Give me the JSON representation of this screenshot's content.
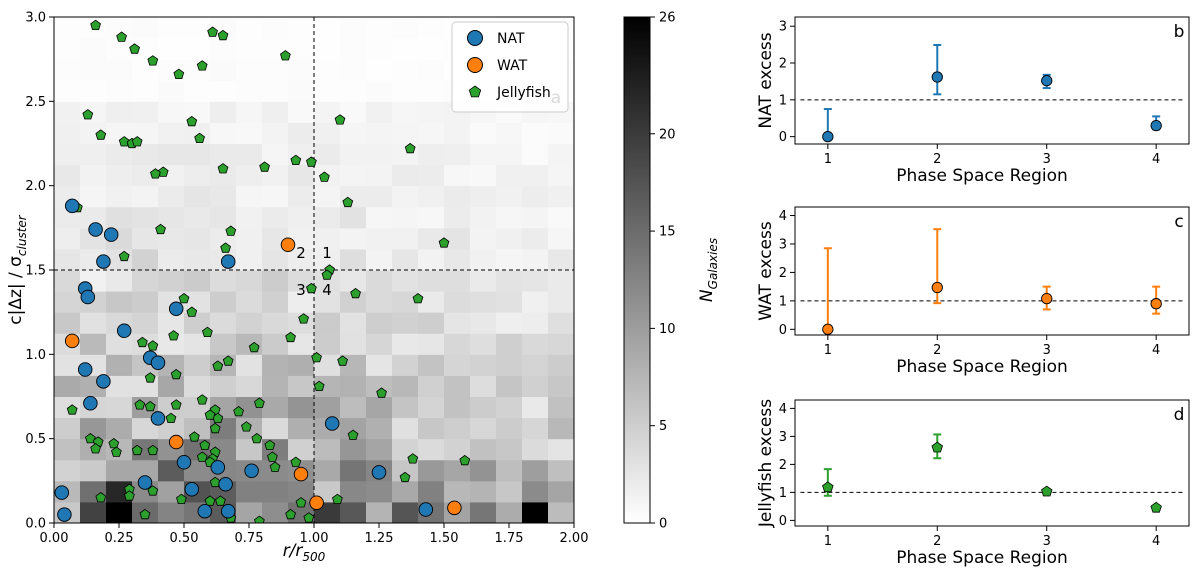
{
  "colors": {
    "nat": "#1f77b4",
    "wat": "#ff7f0e",
    "jelly": "#2ca02c",
    "axis": "#000000"
  },
  "chart_data": [
    {
      "id": "a",
      "type": "scatter",
      "panel_label": "a",
      "xlabel_main": "r/r",
      "xlabel_sub": "500",
      "ylabel": "c|Δz| / σ",
      "ylabel_sub": "cluster",
      "xlim": [
        0,
        2
      ],
      "ylim": [
        0,
        3
      ],
      "xticks": [
        0,
        0.25,
        0.5,
        0.75,
        1.0,
        1.25,
        1.5,
        1.75,
        2.0
      ],
      "xtick_labels": [
        "0.00",
        "0.25",
        "0.50",
        "0.75",
        "1.00",
        "1.25",
        "1.50",
        "1.75",
        "2.00"
      ],
      "yticks": [
        0,
        0.5,
        1.0,
        1.5,
        2.0,
        2.5,
        3.0
      ],
      "ytick_labels": [
        "0.0",
        "0.5",
        "1.0",
        "1.5",
        "2.0",
        "2.5",
        "3.0"
      ],
      "vline": 1.0,
      "hline": 1.5,
      "region_labels": [
        {
          "text": "1",
          "x": 1.05,
          "y": 1.6
        },
        {
          "text": "2",
          "x": 0.95,
          "y": 1.6
        },
        {
          "text": "3",
          "x": 0.95,
          "y": 1.38
        },
        {
          "text": "4",
          "x": 1.05,
          "y": 1.38
        }
      ],
      "heatmap": {
        "description": "2D histogram of cluster galaxies, bins 0.1 x 0.125",
        "vmin": 0,
        "vmax": 26,
        "x_bins": 20,
        "y_bins": 24
      },
      "colorbar": {
        "label": "N",
        "label_sub": "Galaxies",
        "ticks": [
          0,
          5,
          10,
          15,
          20,
          26
        ],
        "tick_labels": [
          "0",
          "5",
          "10",
          "15",
          "20",
          "26"
        ]
      },
      "legend": {
        "placement": "top-right",
        "entries": [
          {
            "label": "NAT",
            "marker": "circle",
            "color": "#1f77b4"
          },
          {
            "label": "WAT",
            "marker": "circle",
            "color": "#ff7f0e"
          },
          {
            "label": "Jellyfish",
            "marker": "pentagon",
            "color": "#2ca02c"
          }
        ]
      },
      "series": [
        {
          "name": "NAT",
          "points": [
            [
              0.07,
              1.88
            ],
            [
              0.16,
              1.74
            ],
            [
              0.22,
              1.71
            ],
            [
              0.19,
              1.55
            ],
            [
              0.67,
              1.55
            ],
            [
              0.12,
              1.39
            ],
            [
              0.13,
              1.34
            ],
            [
              0.47,
              1.27
            ],
            [
              0.27,
              1.14
            ],
            [
              0.12,
              0.91
            ],
            [
              0.37,
              0.98
            ],
            [
              0.4,
              0.95
            ],
            [
              0.19,
              0.84
            ],
            [
              0.14,
              0.71
            ],
            [
              0.4,
              0.62
            ],
            [
              1.07,
              0.59
            ],
            [
              0.5,
              0.36
            ],
            [
              0.63,
              0.33
            ],
            [
              0.76,
              0.31
            ],
            [
              1.25,
              0.3
            ],
            [
              0.35,
              0.24
            ],
            [
              0.53,
              0.2
            ],
            [
              0.66,
              0.23
            ],
            [
              0.03,
              0.18
            ],
            [
              0.04,
              0.05
            ],
            [
              0.58,
              0.07
            ],
            [
              0.67,
              0.07
            ],
            [
              1.43,
              0.08
            ]
          ]
        },
        {
          "name": "WAT",
          "points": [
            [
              0.9,
              1.65
            ],
            [
              0.07,
              1.08
            ],
            [
              0.47,
              0.48
            ],
            [
              0.95,
              0.29
            ],
            [
              1.01,
              0.12
            ],
            [
              1.54,
              0.09
            ]
          ]
        },
        {
          "name": "Jellyfish",
          "points": [
            [
              0.16,
              2.95
            ],
            [
              0.61,
              2.91
            ],
            [
              0.65,
              2.89
            ],
            [
              0.26,
              2.88
            ],
            [
              0.31,
              2.81
            ],
            [
              0.38,
              2.74
            ],
            [
              0.89,
              2.77
            ],
            [
              0.57,
              2.71
            ],
            [
              0.48,
              2.66
            ],
            [
              0.13,
              2.42
            ],
            [
              0.53,
              2.38
            ],
            [
              1.1,
              2.39
            ],
            [
              0.18,
              2.3
            ],
            [
              0.56,
              2.28
            ],
            [
              0.27,
              2.26
            ],
            [
              0.3,
              2.25
            ],
            [
              0.32,
              2.26
            ],
            [
              1.37,
              2.22
            ],
            [
              0.93,
              2.15
            ],
            [
              0.99,
              2.14
            ],
            [
              0.42,
              2.08
            ],
            [
              0.39,
              2.07
            ],
            [
              0.65,
              2.1
            ],
            [
              0.81,
              2.11
            ],
            [
              1.04,
              2.05
            ],
            [
              0.09,
              1.87
            ],
            [
              1.13,
              1.9
            ],
            [
              0.41,
              1.74
            ],
            [
              0.68,
              1.73
            ],
            [
              0.27,
              1.58
            ],
            [
              0.66,
              1.63
            ],
            [
              1.5,
              1.66
            ],
            [
              1.06,
              1.5
            ],
            [
              1.05,
              1.47
            ],
            [
              0.99,
              1.39
            ],
            [
              1.16,
              1.36
            ],
            [
              1.4,
              1.33
            ],
            [
              0.5,
              1.33
            ],
            [
              0.53,
              1.25
            ],
            [
              0.96,
              1.21
            ],
            [
              0.59,
              1.13
            ],
            [
              0.34,
              1.07
            ],
            [
              0.46,
              1.11
            ],
            [
              0.38,
              1.05
            ],
            [
              1.11,
              0.96
            ],
            [
              0.77,
              1.04
            ],
            [
              0.67,
              0.96
            ],
            [
              0.91,
              1.1
            ],
            [
              1.01,
              0.98
            ],
            [
              0.63,
              0.93
            ],
            [
              1.02,
              0.81
            ],
            [
              0.37,
              0.86
            ],
            [
              0.47,
              0.88
            ],
            [
              0.07,
              0.67
            ],
            [
              0.33,
              0.7
            ],
            [
              0.37,
              0.69
            ],
            [
              0.47,
              0.7
            ],
            [
              0.57,
              0.73
            ],
            [
              0.79,
              0.71
            ],
            [
              1.26,
              0.77
            ],
            [
              0.62,
              0.67
            ],
            [
              0.63,
              0.62
            ],
            [
              0.6,
              0.64
            ],
            [
              0.45,
              0.62
            ],
            [
              0.71,
              0.66
            ],
            [
              0.14,
              0.5
            ],
            [
              0.17,
              0.48
            ],
            [
              0.23,
              0.47
            ],
            [
              0.32,
              0.43
            ],
            [
              0.62,
              0.56
            ],
            [
              0.74,
              0.57
            ],
            [
              0.78,
              0.5
            ],
            [
              1.15,
              0.52
            ],
            [
              0.54,
              0.51
            ],
            [
              0.58,
              0.46
            ],
            [
              0.62,
              0.42
            ],
            [
              0.83,
              0.46
            ],
            [
              0.84,
              0.39
            ],
            [
              0.16,
              0.44
            ],
            [
              0.24,
              0.42
            ],
            [
              0.38,
              0.43
            ],
            [
              0.57,
              0.39
            ],
            [
              0.61,
              0.38
            ],
            [
              0.6,
              0.36
            ],
            [
              1.58,
              0.37
            ],
            [
              1.38,
              0.38
            ],
            [
              0.85,
              0.33
            ],
            [
              0.93,
              0.36
            ],
            [
              0.18,
              0.15
            ],
            [
              0.29,
              0.2
            ],
            [
              0.29,
              0.16
            ],
            [
              0.38,
              0.19
            ],
            [
              0.49,
              0.14
            ],
            [
              0.64,
              0.13
            ],
            [
              0.62,
              0.24
            ],
            [
              1.35,
              0.27
            ],
            [
              0.6,
              0.13
            ],
            [
              1.09,
              0.14
            ],
            [
              0.95,
              0.12
            ],
            [
              0.35,
              0.05
            ],
            [
              0.68,
              0.03
            ],
            [
              0.91,
              0.05
            ],
            [
              0.79,
              0.01
            ],
            [
              0.98,
              0.03
            ]
          ]
        }
      ]
    },
    {
      "id": "b",
      "type": "errorbar",
      "panel_label": "b",
      "ylabel": "NAT excess",
      "xlabel": "Phase Space Region",
      "xlim": [
        0.7,
        4.3
      ],
      "ylim": [
        -0.2,
        3.25
      ],
      "xticks": [
        1,
        2,
        3,
        4
      ],
      "yticks": [
        0,
        1,
        2,
        3
      ],
      "reference_line": 1,
      "marker": "circle",
      "color": "#1f77b4",
      "x": [
        1,
        2,
        3,
        4
      ],
      "y": [
        0.0,
        1.62,
        1.52,
        0.3
      ],
      "err_low": [
        0.0,
        0.47,
        0.2,
        0.1
      ],
      "err_high": [
        0.75,
        0.87,
        0.16,
        0.25
      ]
    },
    {
      "id": "c",
      "type": "errorbar",
      "panel_label": "c",
      "ylabel": "WAT excess",
      "xlabel": "Phase Space Region",
      "xlim": [
        0.7,
        4.3
      ],
      "ylim": [
        -0.2,
        4.3
      ],
      "xticks": [
        1,
        2,
        3,
        4
      ],
      "yticks": [
        0,
        1,
        2,
        3,
        4
      ],
      "reference_line": 1,
      "marker": "circle",
      "color": "#ff7f0e",
      "x": [
        1,
        2,
        3,
        4
      ],
      "y": [
        0.0,
        1.47,
        1.08,
        0.9
      ],
      "err_low": [
        0.0,
        0.55,
        0.38,
        0.35
      ],
      "err_high": [
        2.85,
        2.05,
        0.42,
        0.6
      ]
    },
    {
      "id": "d",
      "type": "errorbar",
      "panel_label": "d",
      "ylabel": "Jellyfish excess",
      "xlabel": "Phase Space Region",
      "xlim": [
        0.7,
        4.3
      ],
      "ylim": [
        -0.2,
        4.3
      ],
      "xticks": [
        1,
        2,
        3,
        4
      ],
      "yticks": [
        0,
        1,
        2,
        3,
        4
      ],
      "reference_line": 1,
      "marker": "pentagon",
      "color": "#2ca02c",
      "x": [
        1,
        2,
        3,
        4
      ],
      "y": [
        1.18,
        2.6,
        1.03,
        0.45
      ],
      "err_low": [
        0.3,
        0.38,
        0.08,
        0.05
      ],
      "err_high": [
        0.65,
        0.47,
        0.08,
        0.05
      ]
    }
  ]
}
